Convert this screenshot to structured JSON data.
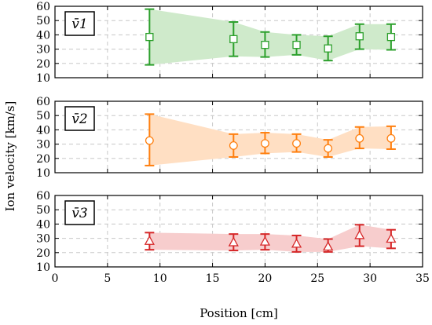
{
  "chart_data": [
    {
      "type": "line",
      "series": [
        {
          "name": "v̄1",
          "marker": "square",
          "color": "#2ca02c",
          "x": [
            9,
            17,
            20,
            23,
            26,
            29,
            32
          ],
          "values": [
            38.5,
            37,
            33,
            33,
            30.5,
            39,
            38.5
          ],
          "err_low": [
            19,
            25,
            24.5,
            26,
            22,
            30,
            29.5
          ],
          "err_high": [
            58,
            49,
            42,
            40,
            39,
            47.5,
            47.5
          ],
          "band_fill": "#cfeacb"
        }
      ],
      "ylim": [
        10,
        60
      ],
      "yticks": [
        10,
        20,
        30,
        40,
        50,
        60
      ]
    },
    {
      "type": "line",
      "series": [
        {
          "name": "v̄2",
          "marker": "circle",
          "color": "#ff7f0e",
          "x": [
            9,
            17,
            20,
            23,
            26,
            29,
            32
          ],
          "values": [
            32.5,
            29,
            30.5,
            30.5,
            27,
            34,
            34
          ],
          "err_low": [
            15,
            21,
            23.5,
            24.5,
            21,
            27,
            26.5
          ],
          "err_high": [
            51,
            37,
            38,
            37,
            33,
            42,
            42.5
          ],
          "band_fill": "#ffdfc3"
        }
      ],
      "ylim": [
        10,
        60
      ],
      "yticks": [
        10,
        20,
        30,
        40,
        50,
        60
      ]
    },
    {
      "type": "line",
      "series": [
        {
          "name": "v̄3",
          "marker": "triangle",
          "color": "#d62728",
          "x": [
            9,
            17,
            20,
            23,
            26,
            29,
            32
          ],
          "values": [
            28,
            27,
            27.5,
            26,
            24,
            32,
            29.5
          ],
          "err_low": [
            22,
            21.5,
            22,
            20.5,
            20.5,
            24.5,
            23
          ],
          "err_high": [
            34,
            33,
            33,
            32,
            29.5,
            39.5,
            36
          ],
          "band_fill": "#f7cdcd"
        }
      ],
      "ylim": [
        10,
        60
      ],
      "yticks": [
        10,
        20,
        30,
        40,
        50,
        60
      ]
    }
  ],
  "shared": {
    "xlim": [
      0,
      35
    ],
    "xticks": [
      0,
      5,
      10,
      15,
      20,
      25,
      30,
      35
    ],
    "xlabel": "Position [cm]",
    "ylabel": "Ion velocity [km/s]",
    "grid": "dashed horizontal and vertical",
    "label_box": "top-left"
  }
}
